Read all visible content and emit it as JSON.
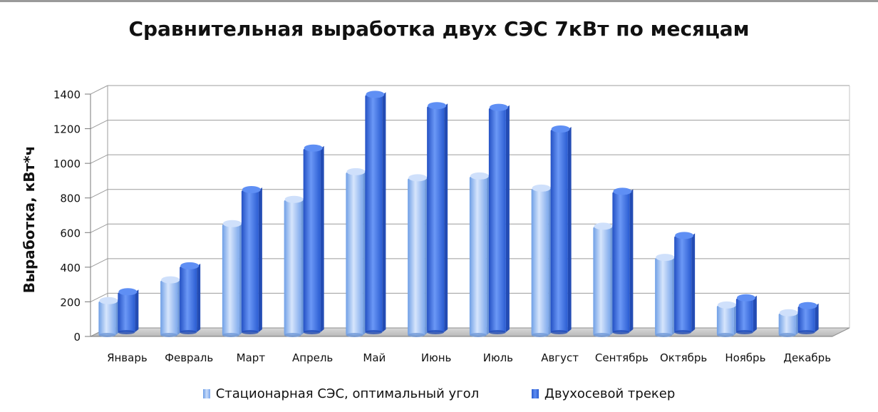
{
  "chart_data": {
    "type": "bar",
    "title": "Сравнительная выработка двух СЭС 7кВт по месяцам",
    "xlabel": "",
    "ylabel": "Выработка, кВт*ч",
    "ylim": [
      0,
      1400
    ],
    "yticks": [
      0,
      200,
      400,
      600,
      800,
      1000,
      1200,
      1400
    ],
    "grid": true,
    "legend_position": "bottom",
    "categories": [
      "Январь",
      "Февраль",
      "Март",
      "Апрель",
      "Май",
      "Июнь",
      "Июль",
      "Август",
      "Сентябрь",
      "Октябрь",
      "Ноябрь",
      "Декабрь"
    ],
    "series": [
      {
        "name": "Стационарная СЭС, оптимальный угол",
        "color": "#9ec0f5",
        "values": [
          215,
          335,
          660,
          800,
          960,
          925,
          935,
          865,
          645,
          465,
          190,
          145
        ]
      },
      {
        "name": "Двухосевой трекер",
        "color": "#3f72e0",
        "values": [
          250,
          400,
          840,
          1080,
          1390,
          1325,
          1315,
          1190,
          830,
          575,
          215,
          170
        ]
      }
    ]
  }
}
